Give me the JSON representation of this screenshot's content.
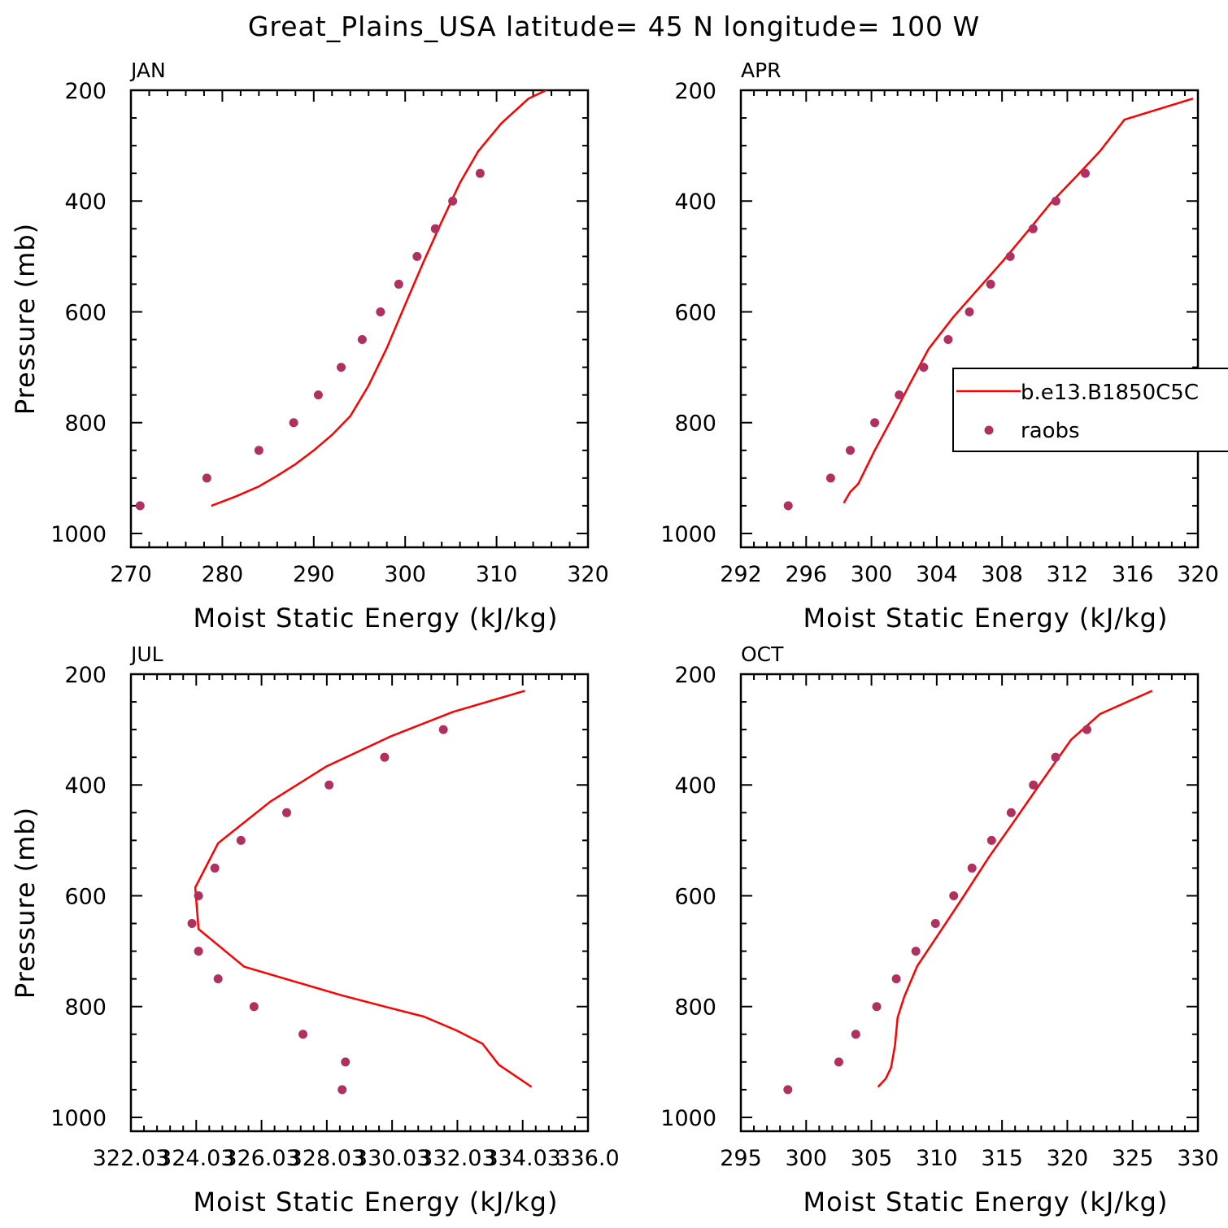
{
  "title": "Great_Plains_USA  latitude= 45 N longitude= 100 W",
  "colors": {
    "model_line": "#ff0000",
    "obs_marker": "#b03060",
    "axis": "#000000"
  },
  "legend": {
    "placement": "right-middle of APR panel",
    "entries": [
      {
        "label": "b.e13.B1850C5C",
        "style": "line"
      },
      {
        "label": "raobs",
        "style": "marker"
      }
    ]
  },
  "chart_data": [
    {
      "type": "line+scatter",
      "panel_label": "JAN",
      "xlabel": "Moist Static Energy (kJ/kg)",
      "ylabel": "Pressure (mb)",
      "xlim": [
        270,
        320
      ],
      "ylim": [
        1025,
        200
      ],
      "xticks": [
        270,
        280,
        290,
        300,
        310,
        320
      ],
      "xtick_labels": [
        "270",
        "280",
        "290",
        "300",
        "310",
        "320"
      ],
      "yticks": [
        200,
        400,
        600,
        800,
        1000
      ],
      "ytick_labels": [
        "200",
        "400",
        "600",
        "800",
        "1000"
      ],
      "series": [
        {
          "name": "b.e13.B1850C5C",
          "kind": "line",
          "points": [
            [
              278.8,
              950
            ],
            [
              281.5,
              933
            ],
            [
              284,
              915
            ],
            [
              286,
              896
            ],
            [
              288,
              875
            ],
            [
              290,
              850
            ],
            [
              292,
              822
            ],
            [
              294,
              788
            ],
            [
              296,
              733
            ],
            [
              298,
              665
            ],
            [
              300,
              587
            ],
            [
              302,
              510
            ],
            [
              304,
              437
            ],
            [
              306,
              367
            ],
            [
              308,
              310
            ],
            [
              310.5,
              260
            ],
            [
              313.5,
              215
            ],
            [
              319,
              172
            ]
          ]
        },
        {
          "name": "raobs",
          "kind": "scatter",
          "points": [
            [
              271,
              950
            ],
            [
              278.3,
              900
            ],
            [
              284,
              850
            ],
            [
              287.8,
              800
            ],
            [
              290.5,
              750
            ],
            [
              293,
              700
            ],
            [
              295.3,
              650
            ],
            [
              297.3,
              600
            ],
            [
              299.3,
              550
            ],
            [
              301.3,
              500
            ],
            [
              303.3,
              450
            ],
            [
              305.2,
              400
            ],
            [
              308.2,
              350
            ]
          ]
        }
      ]
    },
    {
      "type": "line+scatter",
      "panel_label": "APR",
      "xlabel": "Moist Static Energy (kJ/kg)",
      "ylabel": "",
      "xlim": [
        292,
        320
      ],
      "ylim": [
        1025,
        200
      ],
      "xticks": [
        292,
        296,
        300,
        304,
        308,
        312,
        316,
        320
      ],
      "xtick_labels": [
        "292",
        "296",
        "300",
        "304",
        "308",
        "312",
        "316",
        "320"
      ],
      "yticks": [
        200,
        400,
        600,
        800,
        1000
      ],
      "ytick_labels": [
        "200",
        "400",
        "600",
        "800",
        "1000"
      ],
      "series": [
        {
          "name": "b.e13.B1850C5C",
          "kind": "line",
          "points": [
            [
              298.3,
              945
            ],
            [
              298.7,
              925
            ],
            [
              299.2,
              910
            ],
            [
              300.2,
              850
            ],
            [
              301.3,
              790
            ],
            [
              302.3,
              733
            ],
            [
              303.5,
              667
            ],
            [
              305,
              610
            ],
            [
              306.5,
              560
            ],
            [
              308,
              510
            ],
            [
              309.5,
              457
            ],
            [
              311,
              403
            ],
            [
              312.5,
              357
            ],
            [
              314,
              310
            ],
            [
              315.5,
              253
            ],
            [
              319.7,
              215
            ]
          ]
        },
        {
          "name": "raobs",
          "kind": "scatter",
          "points": [
            [
              294.9,
              950
            ],
            [
              297.5,
              900
            ],
            [
              298.7,
              850
            ],
            [
              300.2,
              800
            ],
            [
              301.7,
              750
            ],
            [
              303.2,
              700
            ],
            [
              304.7,
              650
            ],
            [
              306,
              600
            ],
            [
              307.3,
              550
            ],
            [
              308.5,
              500
            ],
            [
              309.9,
              450
            ],
            [
              311.3,
              400
            ],
            [
              313.1,
              350
            ]
          ]
        }
      ]
    },
    {
      "type": "line+scatter",
      "panel_label": "JUL",
      "xlabel": "Moist Static Energy (kJ/kg)",
      "ylabel": "Pressure (mb)",
      "xlim": [
        322.03,
        336.03
      ],
      "ylim": [
        1025,
        200
      ],
      "xticks": [
        322.03,
        324.03,
        326.03,
        328.03,
        330.03,
        332.03,
        334.03,
        336.03
      ],
      "xtick_labels": [
        "322.03",
        "324.03",
        "326.03",
        "328.03",
        "330.03",
        "332.03",
        "334.03",
        "336.0"
      ],
      "yticks": [
        200,
        400,
        600,
        800,
        1000
      ],
      "ytick_labels": [
        "200",
        "400",
        "600",
        "800",
        "1000"
      ],
      "series": [
        {
          "name": "b.e13.B1850C5C",
          "kind": "line",
          "points": [
            [
              334.3,
              945
            ],
            [
              333.8,
              925
            ],
            [
              333.3,
              905
            ],
            [
              332.8,
              867
            ],
            [
              332,
              843
            ],
            [
              331,
              818
            ],
            [
              329.8,
              800
            ],
            [
              328.5,
              780
            ],
            [
              327,
              754
            ],
            [
              325.5,
              728
            ],
            [
              324.1,
              660
            ],
            [
              324,
              585
            ],
            [
              324.7,
              505
            ],
            [
              326.3,
              430
            ],
            [
              328,
              367
            ],
            [
              330,
              312
            ],
            [
              331.9,
              268
            ],
            [
              334.1,
              230
            ]
          ]
        },
        {
          "name": "raobs",
          "kind": "scatter",
          "points": [
            [
              328.5,
              950
            ],
            [
              328.6,
              900
            ],
            [
              327.3,
              850
            ],
            [
              325.8,
              800
            ],
            [
              324.7,
              750
            ],
            [
              324.1,
              700
            ],
            [
              323.9,
              650
            ],
            [
              324.1,
              600
            ],
            [
              324.6,
              550
            ],
            [
              325.4,
              500
            ],
            [
              326.8,
              450
            ],
            [
              328.1,
              400
            ],
            [
              329.8,
              350
            ],
            [
              331.6,
              300
            ]
          ]
        }
      ]
    },
    {
      "type": "line+scatter",
      "panel_label": "OCT",
      "xlabel": "Moist Static Energy (kJ/kg)",
      "ylabel": "",
      "xlim": [
        295,
        330
      ],
      "ylim": [
        1025,
        200
      ],
      "xticks": [
        295,
        300,
        305,
        310,
        315,
        320,
        325,
        330
      ],
      "xtick_labels": [
        "295",
        "300",
        "305",
        "310",
        "315",
        "320",
        "325",
        "330"
      ],
      "yticks": [
        200,
        400,
        600,
        800,
        1000
      ],
      "ytick_labels": [
        "200",
        "400",
        "600",
        "800",
        "1000"
      ],
      "series": [
        {
          "name": "b.e13.B1850C5C",
          "kind": "line",
          "points": [
            [
              305.5,
              945
            ],
            [
              306.1,
              930
            ],
            [
              306.5,
              910
            ],
            [
              306.8,
              870
            ],
            [
              307,
              820
            ],
            [
              307.5,
              783
            ],
            [
              308.5,
              727
            ],
            [
              310.2,
              667
            ],
            [
              312,
              603
            ],
            [
              314,
              530
            ],
            [
              316,
              463
            ],
            [
              318,
              395
            ],
            [
              320.3,
              318
            ],
            [
              322.5,
              272
            ],
            [
              326.5,
              230
            ]
          ]
        },
        {
          "name": "raobs",
          "kind": "scatter",
          "points": [
            [
              298.6,
              950
            ],
            [
              302.5,
              900
            ],
            [
              303.8,
              850
            ],
            [
              305.4,
              800
            ],
            [
              306.9,
              750
            ],
            [
              308.4,
              700
            ],
            [
              309.9,
              650
            ],
            [
              311.3,
              600
            ],
            [
              312.7,
              550
            ],
            [
              314.2,
              500
            ],
            [
              315.7,
              450
            ],
            [
              317.4,
              400
            ],
            [
              319.1,
              350
            ],
            [
              321.5,
              300
            ]
          ]
        }
      ]
    }
  ]
}
